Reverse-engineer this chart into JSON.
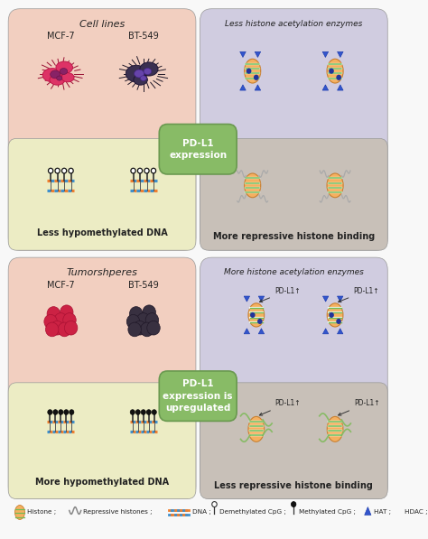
{
  "fig_width": 4.74,
  "fig_height": 5.97,
  "bg_color": "#f8f8f8",
  "pink_bg": "#f2cfc0",
  "lavender_bg": "#d0cce0",
  "yellow_bg": "#ececc4",
  "taupe_bg": "#c8c0b8",
  "green_box": "#88bb66",
  "green_box_edge": "#6a9950",
  "title_cell_lines": "Cell lines",
  "title_tumorshperes": "Tumorshperes",
  "label_mcf7": "MCF-7",
  "label_bt549": "BT-549",
  "label_less_ace": "Less histone acetylation enzymes",
  "label_more_ace": "More histone acetylation enzymes",
  "label_less_hypo": "Less hypomethylated DNA",
  "label_more_hypo": "More hypomethylated DNA",
  "label_more_rep": "More repressive histone binding",
  "label_less_rep": "Less repressive histone binding",
  "pdl1_text1": "PD-L1\nexpression",
  "pdl1_text2": "PD-L1\nexpression is\nupregulated",
  "histone_body": "#f5b060",
  "histone_edge": "#c88030",
  "histone_stripe": "#70bb55",
  "hat_color": "#3355cc",
  "hdac_color": "#223399",
  "pdl1_arrow_color": "#cc2222",
  "dna_col1": "#f08030",
  "dna_col2": "#4090cc",
  "pin_color": "#333333"
}
